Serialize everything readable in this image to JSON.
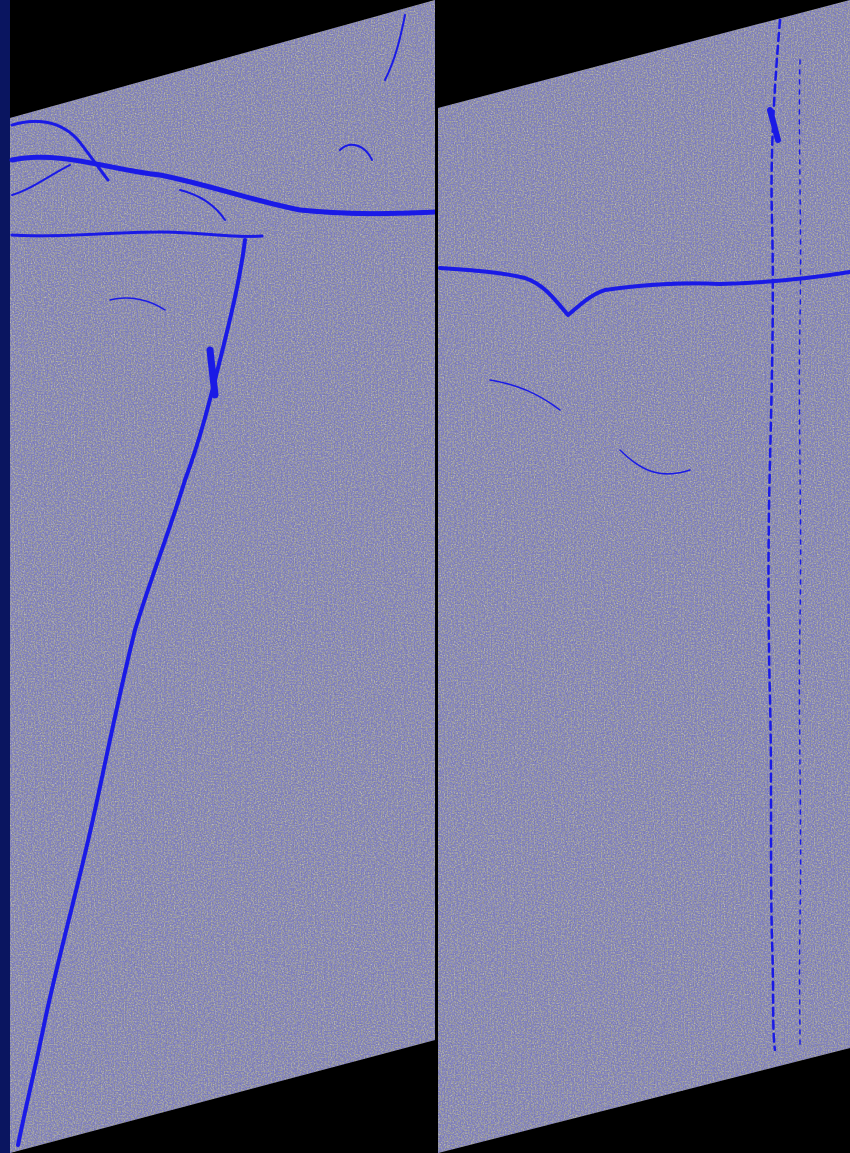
{
  "image": {
    "kind": "edge-detected noisy grayscale image, two sheared panels",
    "colors": {
      "frame": "#0a1560",
      "void": "#000000",
      "noise_base": "#8a8a82",
      "edge_line": "#1a1ae6"
    },
    "panels": [
      {
        "id": "left-panel"
      },
      {
        "id": "right-panel"
      }
    ]
  }
}
